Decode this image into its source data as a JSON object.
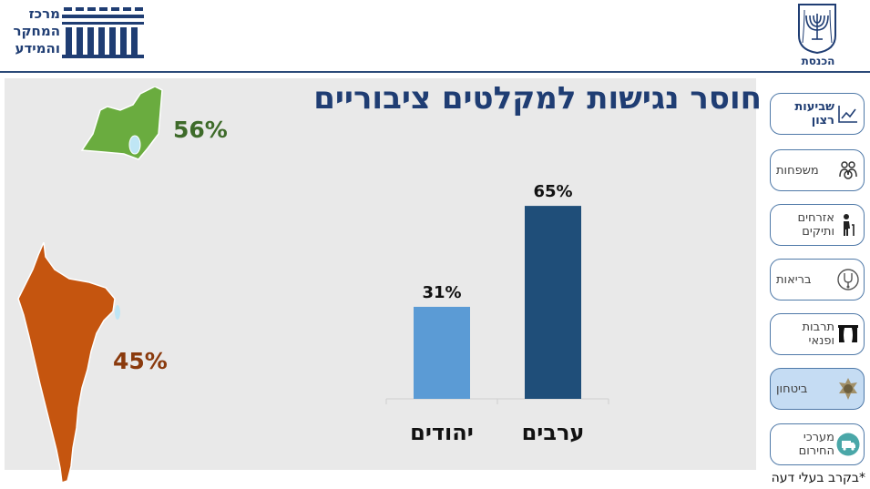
{
  "header": {
    "org_name_lines": [
      "מרכז",
      "המחקר",
      "והמידע"
    ],
    "knesset_label": "הכנסת"
  },
  "title": "חוסר נגישות למקלטים ציבוריים",
  "nav": [
    {
      "label": "שביעות רצון",
      "icon": "line-chart-icon",
      "active": false,
      "bold": true
    },
    {
      "label": "משפחות",
      "icon": "family-icon",
      "active": false,
      "bold": false
    },
    {
      "label": "אזרחים ותיקים",
      "icon": "elderly-icon",
      "active": false,
      "bold": false
    },
    {
      "label": "בריאות",
      "icon": "stethoscope-icon",
      "active": false,
      "bold": false
    },
    {
      "label": "תרבות ופנאי",
      "icon": "theater-curtain-icon",
      "active": false,
      "bold": false
    },
    {
      "label": "ביטחון",
      "icon": "security-badge-icon",
      "active": true,
      "bold": false
    },
    {
      "label": "מערכי החירום",
      "icon": "ambulance-icon",
      "active": false,
      "bold": false
    }
  ],
  "maps": {
    "north": {
      "value": "56%",
      "color": "#6aac3f",
      "text_color": "#3e6b2a"
    },
    "south": {
      "value": "45%",
      "color": "#c5550f",
      "text_color": "#8a3a0d"
    }
  },
  "chart_data": {
    "type": "bar",
    "categories": [
      "יהודים",
      "ערבים"
    ],
    "values": [
      31,
      65
    ],
    "value_labels": [
      "31%",
      "65%"
    ],
    "colors": [
      "#5b9bd5",
      "#1f4e79"
    ],
    "ylim": [
      0,
      100
    ]
  },
  "footnote": "*בקרב בעלי דעה"
}
